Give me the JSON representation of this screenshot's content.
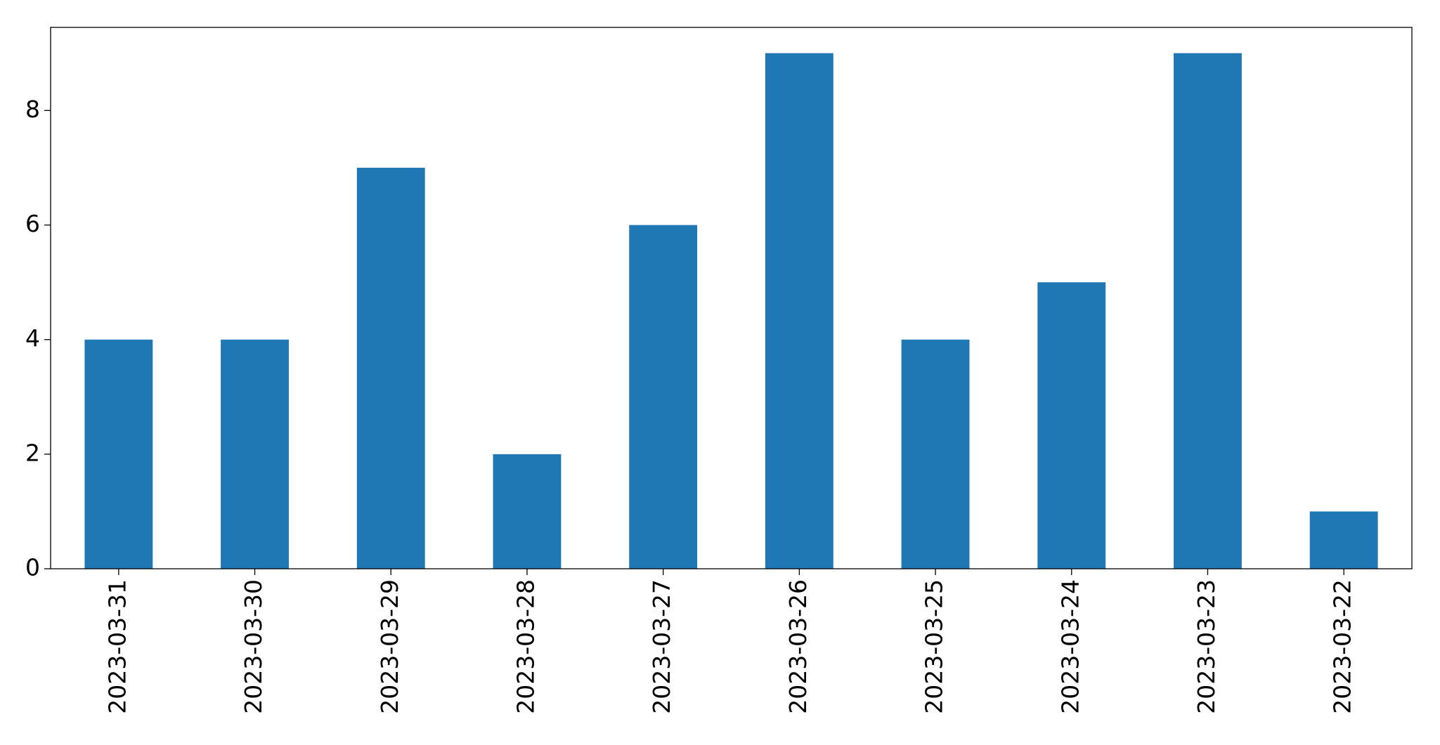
{
  "chart_data": {
    "type": "bar",
    "categories": [
      "2023-03-31",
      "2023-03-30",
      "2023-03-29",
      "2023-03-28",
      "2023-03-27",
      "2023-03-26",
      "2023-03-25",
      "2023-03-24",
      "2023-03-23",
      "2023-03-22"
    ],
    "values": [
      4,
      4,
      7,
      2,
      6,
      9,
      4,
      5,
      9,
      1
    ],
    "color": "#1f77b4",
    "ylim": [
      0,
      9.45
    ],
    "yticks": [
      0,
      2,
      4,
      6,
      8
    ],
    "grid": false
  }
}
